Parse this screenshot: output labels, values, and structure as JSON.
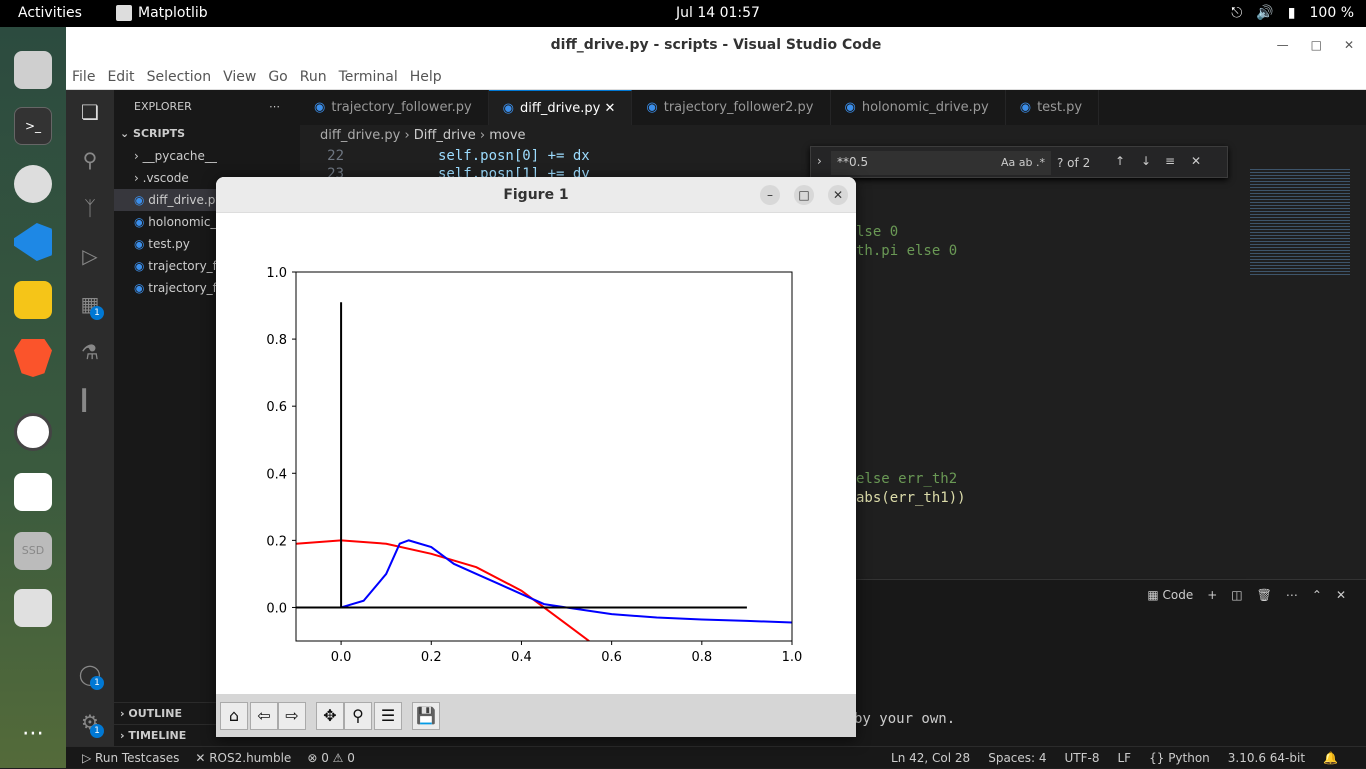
{
  "topbar": {
    "activities": "Activities",
    "app_name": "Matplotlib",
    "clock": "Jul 14  01:57",
    "battery": "100 %"
  },
  "window": {
    "title": "diff_drive.py - scripts - Visual Studio Code"
  },
  "menu": [
    "File",
    "Edit",
    "Selection",
    "View",
    "Go",
    "Run",
    "Terminal",
    "Help"
  ],
  "activity_badges": {
    "extensions": "1",
    "accounts": "1",
    "manage": "1"
  },
  "explorer": {
    "header": "EXPLORER",
    "section": "SCRIPTS",
    "items": [
      "__pycache__",
      ".vscode",
      "diff_drive.py",
      "holonomic_",
      "test.py",
      "trajectory_f",
      "trajectory_f"
    ],
    "outline": "OUTLINE",
    "timeline": "TIMELINE"
  },
  "tabs": [
    "trajectory_follower.py",
    "diff_drive.py",
    "trajectory_follower2.py",
    "holonomic_drive.py",
    "test.py"
  ],
  "breadcrumb": {
    "file": "diff_drive.py",
    "class": "Diff_drive",
    "method": "move"
  },
  "editor": {
    "lines": [
      {
        "num": "22",
        "text": "self.posn[0] += dx"
      },
      {
        "num": "23",
        "text": "self.posn[1] += dy"
      }
    ],
    "fragments": [
      "lse 0",
      "th.pi else 0",
      "else err_th2",
      "abs(err_th1))"
    ]
  },
  "find": {
    "query": "**0.5",
    "count": "? of 2",
    "opt_case": "Aa",
    "opt_word": "ab",
    "opt_regex": ".*"
  },
  "panel": {
    "terminal_label": "Code",
    "text": "by your own."
  },
  "statusbar": {
    "run_testcases": "Run Testcases",
    "ros": "ROS2.humble",
    "problems": "0 ⚠ 0",
    "position": "Ln 42, Col 28",
    "spaces": "Spaces: 4",
    "encoding": "UTF-8",
    "eol": "LF",
    "language": "Python",
    "interpreter": "3.10.6 64-bit"
  },
  "figure": {
    "title": "Figure 1"
  },
  "chart_data": {
    "type": "line",
    "title": "",
    "xlabel": "",
    "ylabel": "",
    "xlim": [
      -0.1,
      1.0
    ],
    "ylim": [
      -0.1,
      1.0
    ],
    "xticks": [
      "0.0",
      "0.2",
      "0.4",
      "0.6",
      "0.8",
      "1.0"
    ],
    "yticks": [
      "0.0",
      "0.2",
      "0.4",
      "0.6",
      "0.8",
      "1.0"
    ],
    "grid": false,
    "series": [
      {
        "color": "#ff0000",
        "x": [
          -0.1,
          0.0,
          0.1,
          0.2,
          0.3,
          0.4,
          0.45,
          0.5,
          0.55
        ],
        "y": [
          0.19,
          0.2,
          0.19,
          0.16,
          0.12,
          0.05,
          0.0,
          -0.05,
          -0.1
        ]
      },
      {
        "color": "#0000ff",
        "x": [
          0.0,
          0.05,
          0.1,
          0.13,
          0.15,
          0.2,
          0.25,
          0.3,
          0.35,
          0.4,
          0.45,
          0.5,
          0.6,
          0.7,
          0.8,
          0.9,
          1.0
        ],
        "y": [
          0.0,
          0.02,
          0.1,
          0.19,
          0.2,
          0.18,
          0.13,
          0.1,
          0.07,
          0.04,
          0.01,
          0.0,
          -0.02,
          -0.03,
          -0.036,
          -0.04,
          -0.045
        ]
      },
      {
        "color": "#000000",
        "x": [
          0.0,
          0.0
        ],
        "y": [
          0.0,
          0.91
        ]
      },
      {
        "color": "#000000",
        "x": [
          -0.1,
          0.9
        ],
        "y": [
          0.0,
          0.0
        ]
      }
    ]
  }
}
